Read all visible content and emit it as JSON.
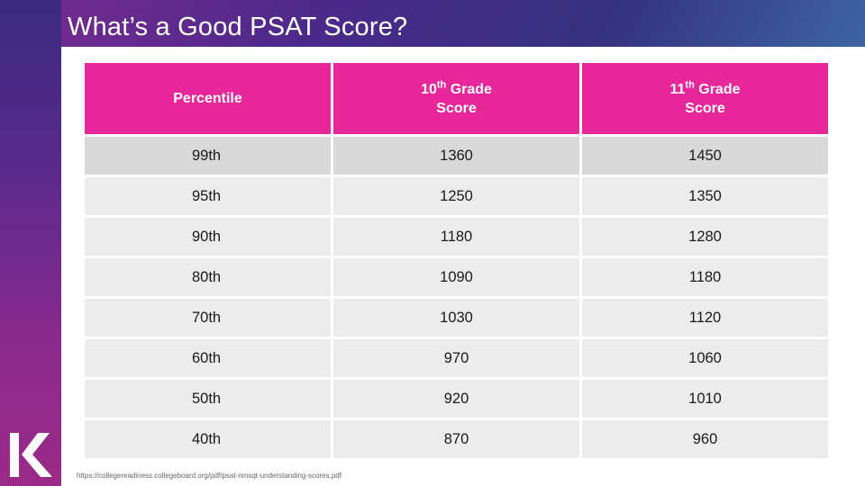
{
  "title": "What’s a Good PSAT Score?",
  "colors": {
    "header_pink": "#e8289a",
    "row_gray": "#ececec",
    "row_highlight": "#d9d9d9"
  },
  "table": {
    "headers": [
      {
        "text": "Percentile"
      },
      {
        "text": "10",
        "sup": "th",
        "rest_line1": " Grade",
        "line2": "Score"
      },
      {
        "text": "11",
        "sup": "th",
        "rest_line1": " Grade",
        "line2": "Score"
      }
    ],
    "rows": [
      [
        "99th",
        "1360",
        "1450"
      ],
      [
        "95th",
        "1250",
        "1350"
      ],
      [
        "90th",
        "1180",
        "1280"
      ],
      [
        "80th",
        "1090",
        "1180"
      ],
      [
        "70th",
        "1030",
        "1120"
      ],
      [
        "60th",
        "970",
        "1060"
      ],
      [
        "50th",
        "920",
        "1010"
      ],
      [
        "40th",
        "870",
        "960"
      ]
    ]
  },
  "source": "https://collegereadiness.collegeboard.org/pdf/psat-nmsqt-understanding-scores.pdf",
  "logo_icon": "k-logo-icon"
}
